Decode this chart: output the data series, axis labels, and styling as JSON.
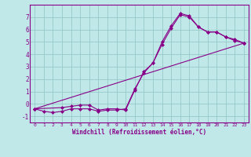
{
  "xlabel": "Windchill (Refroidissement éolien,°C)",
  "bg_color": "#c0e8e8",
  "grid_color": "#98c8c8",
  "line_color": "#880088",
  "xlim": [
    -0.5,
    23.5
  ],
  "ylim": [
    -1.5,
    8.0
  ],
  "yticks": [
    -1,
    0,
    1,
    2,
    3,
    4,
    5,
    6,
    7
  ],
  "xticks": [
    0,
    1,
    2,
    3,
    4,
    5,
    6,
    7,
    8,
    9,
    10,
    11,
    12,
    13,
    14,
    15,
    16,
    17,
    18,
    19,
    20,
    21,
    22,
    23
  ],
  "line1_x": [
    0,
    1,
    2,
    3,
    4,
    5,
    6,
    7,
    8,
    9,
    10,
    11,
    12,
    13,
    14,
    15,
    16,
    17,
    18,
    19,
    20,
    21,
    22,
    23
  ],
  "line1_y": [
    -0.4,
    -0.6,
    -0.7,
    -0.6,
    -0.4,
    -0.4,
    -0.4,
    -0.6,
    -0.5,
    -0.5,
    -0.4,
    1.2,
    2.5,
    3.3,
    5.0,
    6.3,
    7.3,
    7.1,
    6.2,
    5.8,
    5.8,
    5.4,
    5.2,
    4.9
  ],
  "line2_x": [
    0,
    3,
    4,
    5,
    6,
    7,
    8,
    9,
    10,
    11,
    12,
    13,
    14,
    15,
    16,
    17,
    18,
    19,
    20,
    21,
    22,
    23
  ],
  "line2_y": [
    -0.4,
    -0.3,
    -0.2,
    -0.1,
    -0.1,
    -0.5,
    -0.4,
    -0.4,
    -0.5,
    1.1,
    2.6,
    3.3,
    4.8,
    6.1,
    7.2,
    7.0,
    6.2,
    5.8,
    5.8,
    5.4,
    5.1,
    4.9
  ],
  "line3_x": [
    0,
    23
  ],
  "line3_y": [
    -0.4,
    4.9
  ]
}
